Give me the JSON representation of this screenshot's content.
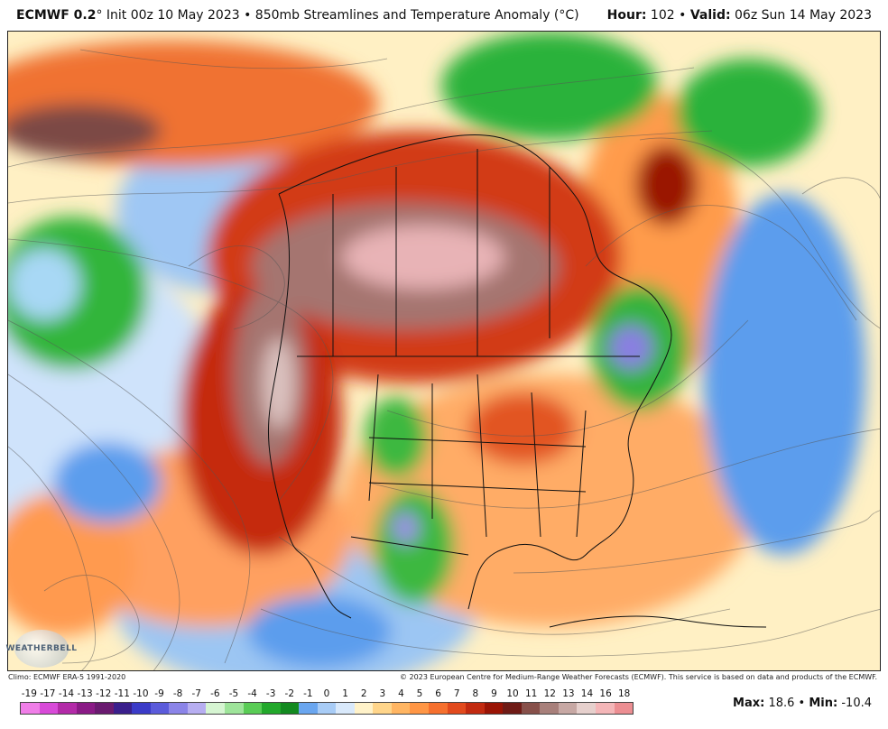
{
  "header": {
    "model": "ECMWF 0.2",
    "title_rest": "° Init 00z 10 May 2023 • 850mb Streamlines and Temperature Anomaly (°C)",
    "hour_label": "Hour:",
    "hour_value": "102",
    "valid_label": "Valid:",
    "valid_value": "06z Sun 14 May 2023"
  },
  "footer": {
    "climo": "Climo: ECMWF ERA-5 1991-2020",
    "copyright": "© 2023 European Centre for Medium-Range Weather Forecasts (ECMWF). This service is based on data and products of the ECMWF.",
    "logo_text": "WEATHERBELL"
  },
  "stats": {
    "max_label": "Max:",
    "max_value": "18.6",
    "min_label": "Min:",
    "min_value": "-10.4"
  },
  "colorbar": {
    "labels": [
      "-19",
      "-17",
      "-14",
      "-13",
      "-12",
      "-11",
      "-10",
      "-9",
      "-8",
      "-7",
      "-6",
      "-5",
      "-4",
      "-3",
      "-2",
      "-1",
      "0",
      "1",
      "2",
      "3",
      "4",
      "5",
      "6",
      "7",
      "8",
      "9",
      "10",
      "11",
      "12",
      "13",
      "14",
      "16",
      "18"
    ],
    "colors": [
      "#f07ee8",
      "#d84ad8",
      "#b32aa8",
      "#8a1a86",
      "#6a1a70",
      "#3a1f8c",
      "#3b3bc8",
      "#5b5bdb",
      "#8b84e8",
      "#b7aef1",
      "#d6f5d2",
      "#9ee49a",
      "#59cc55",
      "#22a82b",
      "#138a20",
      "#6aa6ef",
      "#a8ccf6",
      "#d9e9fb",
      "#fff2c9",
      "#ffd58a",
      "#ffb562",
      "#ff9645",
      "#f6702e",
      "#e24a1d",
      "#c22a10",
      "#9a1405",
      "#6f1b16",
      "#87504a",
      "#a8807b",
      "#c7a8a4",
      "#e6d0cd",
      "#f4b6b8",
      "#ec8e92"
    ]
  },
  "map": {
    "features": [
      "streamlines",
      "temperature-anomaly",
      "coastlines",
      "state-borders",
      "country-borders"
    ]
  }
}
